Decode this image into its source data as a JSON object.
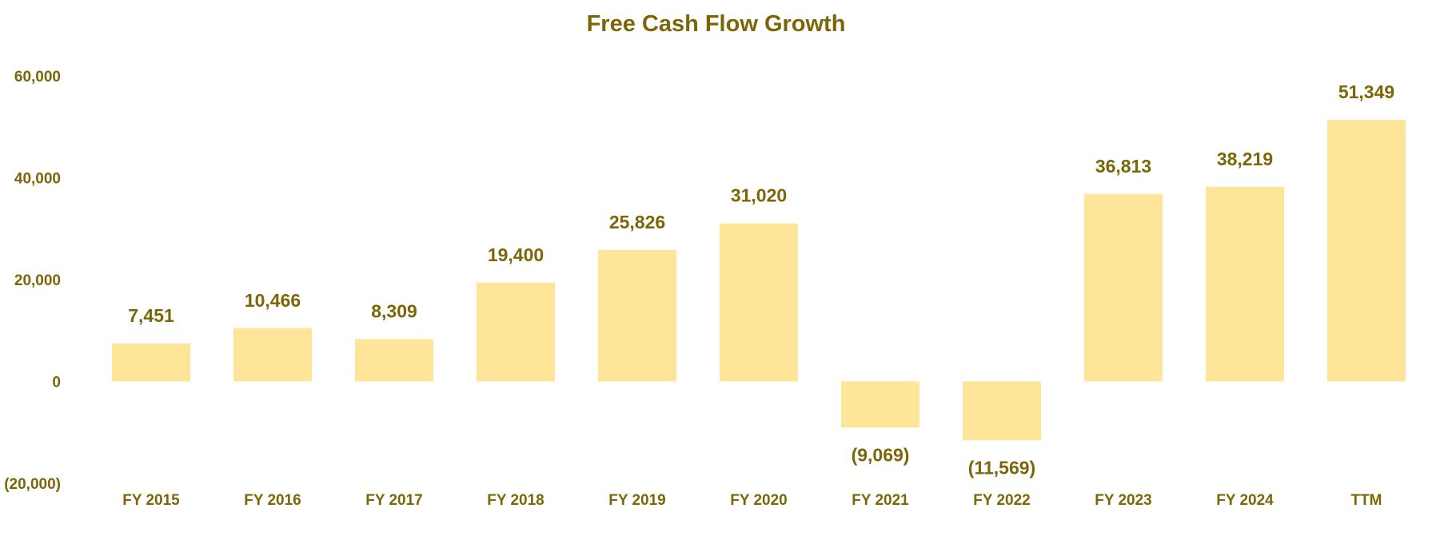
{
  "chart_data": {
    "type": "bar",
    "title": "Free Cash Flow Growth",
    "xlabel": "",
    "ylabel": "",
    "categories": [
      "FY 2015",
      "FY 2016",
      "FY 2017",
      "FY 2018",
      "FY 2019",
      "FY 2020",
      "FY 2021",
      "FY 2022",
      "FY 2023",
      "FY 2024",
      "TTM"
    ],
    "values": [
      7451,
      10466,
      8309,
      19400,
      25826,
      31020,
      -9069,
      -11569,
      36813,
      38219,
      51349
    ],
    "value_labels": [
      "7,451",
      "10,466",
      "8,309",
      "19,400",
      "25,826",
      "31,020",
      "(9,069)",
      "(11,569)",
      "36,813",
      "38,219",
      "51,349"
    ],
    "ylim": [
      -20000,
      60000
    ],
    "yticks": [
      60000,
      40000,
      20000,
      0,
      -20000
    ],
    "ytick_labels": [
      "60,000",
      "40,000",
      "20,000",
      "0",
      "(20,000)"
    ],
    "grid": false,
    "legend": "none",
    "colors": {
      "bar": "#fee599",
      "text": "#7d6608"
    }
  }
}
